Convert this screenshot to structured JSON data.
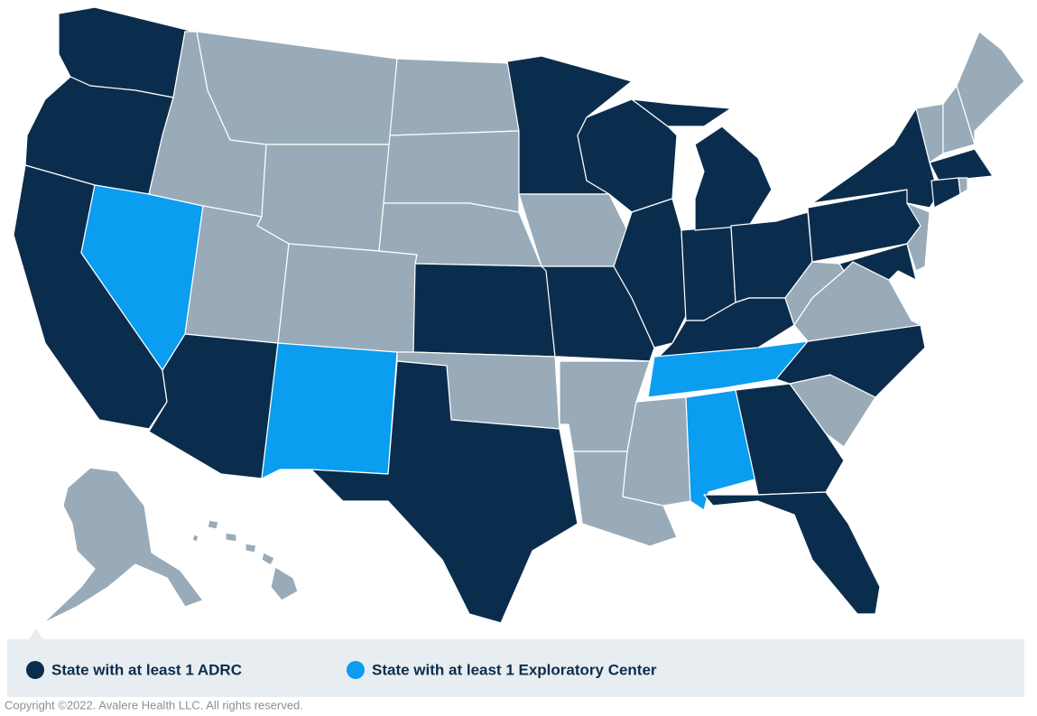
{
  "legend": [
    {
      "label": "State with at least 1 ADRC",
      "color": "#0b2d4d"
    },
    {
      "label": "State with at least 1 Exploratory Center",
      "color": "#0a9df0"
    }
  ],
  "other_color": "#99abb8",
  "copyright": "Copyright ©2022. Avalere Health LLC. All rights reserved."
}
